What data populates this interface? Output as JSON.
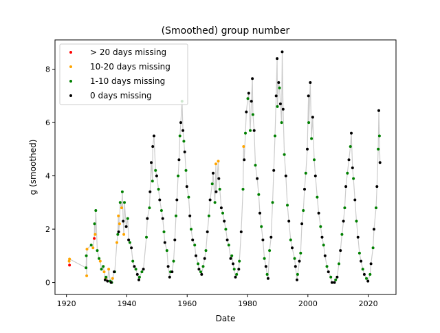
{
  "chart_data": {
    "type": "scatter",
    "title": "(Smoothed) group number",
    "xlabel": "Date",
    "ylabel": "g (smoothed)",
    "xlim": [
      1916.2,
      2029.2
    ],
    "ylim": [
      -0.45,
      9.1
    ],
    "xticks": [
      1920,
      1940,
      1960,
      1980,
      2000,
      2020
    ],
    "yticks": [
      0,
      2,
      4,
      6,
      8
    ],
    "grid": false,
    "legend_position": "top-left",
    "line_color": "#cccccc",
    "series": [
      {
        "name": "> 20 days missing",
        "color": "#ff0000",
        "points": [
          [
            1921,
            0.65
          ],
          [
            1929.2,
            1.65
          ]
        ]
      },
      {
        "name": "10-20 days missing",
        "color": "#ffa500",
        "points": [
          [
            1920.9,
            0.8
          ],
          [
            1921,
            0.88
          ],
          [
            1926.8,
            1.25
          ],
          [
            1926.7,
            0.25
          ],
          [
            1928.8,
            1.3
          ],
          [
            1929.5,
            1.8
          ],
          [
            1931.2,
            0.8
          ],
          [
            1932.5,
            0.4
          ],
          [
            1933,
            0.15
          ],
          [
            1934,
            0.5
          ],
          [
            1935.3,
            0.15
          ],
          [
            1936.7,
            1.5
          ],
          [
            1937.2,
            2.5
          ],
          [
            1937.6,
            2.2
          ],
          [
            1938.3,
            2.8
          ],
          [
            1939,
            1.8
          ],
          [
            1969.5,
            4.45
          ],
          [
            1970.3,
            4.55
          ],
          [
            1978.7,
            5.1
          ]
        ]
      },
      {
        "name": "1-10 days missing",
        "color": "#008000",
        "points": [
          [
            1926.5,
            0.55
          ],
          [
            1926.6,
            1.0
          ],
          [
            1928.2,
            1.4
          ],
          [
            1929.3,
            2.2
          ],
          [
            1929.7,
            2.7
          ],
          [
            1930.2,
            1.2
          ],
          [
            1930.8,
            0.9
          ],
          [
            1931.6,
            0.5
          ],
          [
            1932.2,
            0.6
          ],
          [
            1933.1,
            0.2
          ],
          [
            1934.5,
            0.05
          ],
          [
            1935,
            0.0
          ],
          [
            1936,
            0.4
          ],
          [
            1937,
            1.8
          ],
          [
            1937.8,
            3.0
          ],
          [
            1938.5,
            3.4
          ],
          [
            1939.2,
            3.0
          ],
          [
            1940.3,
            2.4
          ],
          [
            1941,
            1.5
          ],
          [
            1942,
            0.8
          ],
          [
            1943,
            0.5
          ],
          [
            1944.2,
            0.2
          ],
          [
            1945,
            0.4
          ],
          [
            1946.5,
            1.7
          ],
          [
            1947.5,
            2.8
          ],
          [
            1948.5,
            3.8
          ],
          [
            1949.5,
            4.2
          ],
          [
            1950.5,
            3.5
          ],
          [
            1951.5,
            2.7
          ],
          [
            1952.3,
            1.9
          ],
          [
            1953.3,
            1.2
          ],
          [
            1954.5,
            0.4
          ],
          [
            1955.5,
            0.8
          ],
          [
            1956.3,
            2.5
          ],
          [
            1957,
            4.0
          ],
          [
            1957.6,
            5.5
          ],
          [
            1958.3,
            6.8
          ],
          [
            1958.9,
            5.3
          ],
          [
            1959.6,
            4.2
          ],
          [
            1960.5,
            3.2
          ],
          [
            1961.3,
            2.0
          ],
          [
            1962.5,
            1.4
          ],
          [
            1963.6,
            0.7
          ],
          [
            1964.5,
            0.4
          ],
          [
            1965.3,
            0.6
          ],
          [
            1966.2,
            1.2
          ],
          [
            1967.2,
            2.5
          ],
          [
            1968.3,
            3.7
          ],
          [
            1969.2,
            3.0
          ],
          [
            1970.8,
            3.5
          ],
          [
            1971.8,
            2.6
          ],
          [
            1972.8,
            2.0
          ],
          [
            1973.8,
            1.4
          ],
          [
            1974.8,
            1.0
          ],
          [
            1975.6,
            0.5
          ],
          [
            1976.4,
            0.3
          ],
          [
            1977.3,
            0.8
          ],
          [
            1978.5,
            3.5
          ],
          [
            1979.3,
            5.6
          ],
          [
            1980.1,
            6.9
          ],
          [
            1980.9,
            5.7
          ],
          [
            1981.8,
            6.3
          ],
          [
            1982.6,
            4.4
          ],
          [
            1983.7,
            3.3
          ],
          [
            1984.6,
            2.1
          ],
          [
            1985.6,
            0.9
          ],
          [
            1986.5,
            0.3
          ],
          [
            1987.3,
            1.2
          ],
          [
            1988.3,
            3.0
          ],
          [
            1989.1,
            5.5
          ],
          [
            1989.9,
            6.6
          ],
          [
            1990.6,
            7.3
          ],
          [
            1991.3,
            6.0
          ],
          [
            1992.2,
            4.8
          ],
          [
            1993.2,
            2.9
          ],
          [
            1994.3,
            1.6
          ],
          [
            1995.6,
            0.9
          ],
          [
            1996.6,
            0.3
          ],
          [
            1997.6,
            1.1
          ],
          [
            1998.5,
            2.7
          ],
          [
            1999.3,
            4.1
          ],
          [
            2000.3,
            6.0
          ],
          [
            2001.2,
            5.4
          ],
          [
            2002.1,
            4.6
          ],
          [
            2003.1,
            3.2
          ],
          [
            2004.2,
            2.1
          ],
          [
            2005.2,
            1.4
          ],
          [
            2006.3,
            0.6
          ],
          [
            2007.6,
            0.2
          ],
          [
            2009.2,
            0.1
          ],
          [
            2010.3,
            0.7
          ],
          [
            2011.3,
            1.8
          ],
          [
            2012.2,
            2.8
          ],
          [
            2013.1,
            4.1
          ],
          [
            2014.1,
            5.1
          ],
          [
            2015.1,
            3.9
          ],
          [
            2016.1,
            2.3
          ],
          [
            2017.1,
            1.1
          ],
          [
            2018.2,
            0.5
          ],
          [
            2019.4,
            0.15
          ],
          [
            2020.6,
            0.3
          ],
          [
            2021.6,
            1.3
          ],
          [
            2022.6,
            2.8
          ],
          [
            2023.3,
            5.0
          ],
          [
            2023.7,
            5.5
          ]
        ]
      },
      {
        "name": "0 days missing",
        "color": "#000000",
        "points": [
          [
            1932.8,
            0.1
          ],
          [
            1933.6,
            0.05
          ],
          [
            1934.8,
            0.0
          ],
          [
            1935.8,
            0.4
          ],
          [
            1937.3,
            1.9
          ],
          [
            1938.8,
            2.3
          ],
          [
            1939.8,
            2.1
          ],
          [
            1940.6,
            1.6
          ],
          [
            1941.5,
            1.3
          ],
          [
            1942.5,
            0.6
          ],
          [
            1943.5,
            0.3
          ],
          [
            1944,
            0.1
          ],
          [
            1945.5,
            0.5
          ],
          [
            1946.8,
            2.4
          ],
          [
            1947.7,
            3.4
          ],
          [
            1948.1,
            4.5
          ],
          [
            1948.6,
            5.1
          ],
          [
            1949,
            5.5
          ],
          [
            1949.9,
            4.0
          ],
          [
            1950.9,
            3.1
          ],
          [
            1951.9,
            2.4
          ],
          [
            1952.6,
            1.5
          ],
          [
            1953.7,
            0.6
          ],
          [
            1954.2,
            0.2
          ],
          [
            1955,
            0.4
          ],
          [
            1955.9,
            1.6
          ],
          [
            1956.6,
            3.1
          ],
          [
            1957.3,
            4.6
          ],
          [
            1957.9,
            6.0
          ],
          [
            1958.6,
            5.7
          ],
          [
            1959.2,
            4.9
          ],
          [
            1959.9,
            3.6
          ],
          [
            1960.9,
            2.5
          ],
          [
            1961.8,
            1.6
          ],
          [
            1962.9,
            1.0
          ],
          [
            1963.9,
            0.5
          ],
          [
            1964.8,
            0.3
          ],
          [
            1965.8,
            0.9
          ],
          [
            1966.7,
            1.9
          ],
          [
            1967.6,
            3.1
          ],
          [
            1968.6,
            4.1
          ],
          [
            1969.6,
            3.4
          ],
          [
            1970.5,
            3.9
          ],
          [
            1971.3,
            2.8
          ],
          [
            1972.3,
            2.3
          ],
          [
            1973.3,
            1.6
          ],
          [
            1974.4,
            0.9
          ],
          [
            1975.2,
            0.7
          ],
          [
            1976,
            0.2
          ],
          [
            1977.1,
            0.5
          ],
          [
            1977.9,
            1.9
          ],
          [
            1978.9,
            4.6
          ],
          [
            1979.6,
            6.4
          ],
          [
            1980.4,
            7.1
          ],
          [
            1981.3,
            6.8
          ],
          [
            1981.6,
            7.65
          ],
          [
            1982.2,
            5.7
          ],
          [
            1983.2,
            3.9
          ],
          [
            1984.1,
            2.6
          ],
          [
            1985.1,
            1.6
          ],
          [
            1986.1,
            0.6
          ],
          [
            1986.8,
            0.15
          ],
          [
            1987.8,
            1.7
          ],
          [
            1988.7,
            4.2
          ],
          [
            1989.5,
            7.0
          ],
          [
            1989.8,
            8.4
          ],
          [
            1990.3,
            7.5
          ],
          [
            1990.9,
            6.7
          ],
          [
            1991.5,
            8.65
          ],
          [
            1991.8,
            6.5
          ],
          [
            1992.7,
            4.0
          ],
          [
            1993.7,
            2.3
          ],
          [
            1994.8,
            1.3
          ],
          [
            1995.9,
            0.6
          ],
          [
            1996.4,
            0.1
          ],
          [
            1997.2,
            0.8
          ],
          [
            1998,
            2.2
          ],
          [
            1998.9,
            3.5
          ],
          [
            1999.8,
            5.0
          ],
          [
            2000.2,
            7.0
          ],
          [
            2000.8,
            7.5
          ],
          [
            2001.6,
            6.2
          ],
          [
            2002.5,
            4.0
          ],
          [
            2003.6,
            2.6
          ],
          [
            2004.7,
            1.7
          ],
          [
            2005.7,
            1.0
          ],
          [
            2006.8,
            0.4
          ],
          [
            2008,
            0.0
          ],
          [
            2008.8,
            0.0
          ],
          [
            2009.7,
            0.2
          ],
          [
            2010.8,
            1.2
          ],
          [
            2011.8,
            2.3
          ],
          [
            2012.6,
            3.6
          ],
          [
            2013.6,
            4.6
          ],
          [
            2014.4,
            5.6
          ],
          [
            2014.8,
            4.3
          ],
          [
            2015.6,
            3.1
          ],
          [
            2016.6,
            1.7
          ],
          [
            2017.6,
            0.8
          ],
          [
            2018.7,
            0.3
          ],
          [
            2019.9,
            0.05
          ],
          [
            2020.9,
            0.7
          ],
          [
            2021.9,
            2.0
          ],
          [
            2022.9,
            3.6
          ],
          [
            2023.5,
            6.45
          ],
          [
            2023.9,
            4.5
          ]
        ]
      }
    ]
  }
}
